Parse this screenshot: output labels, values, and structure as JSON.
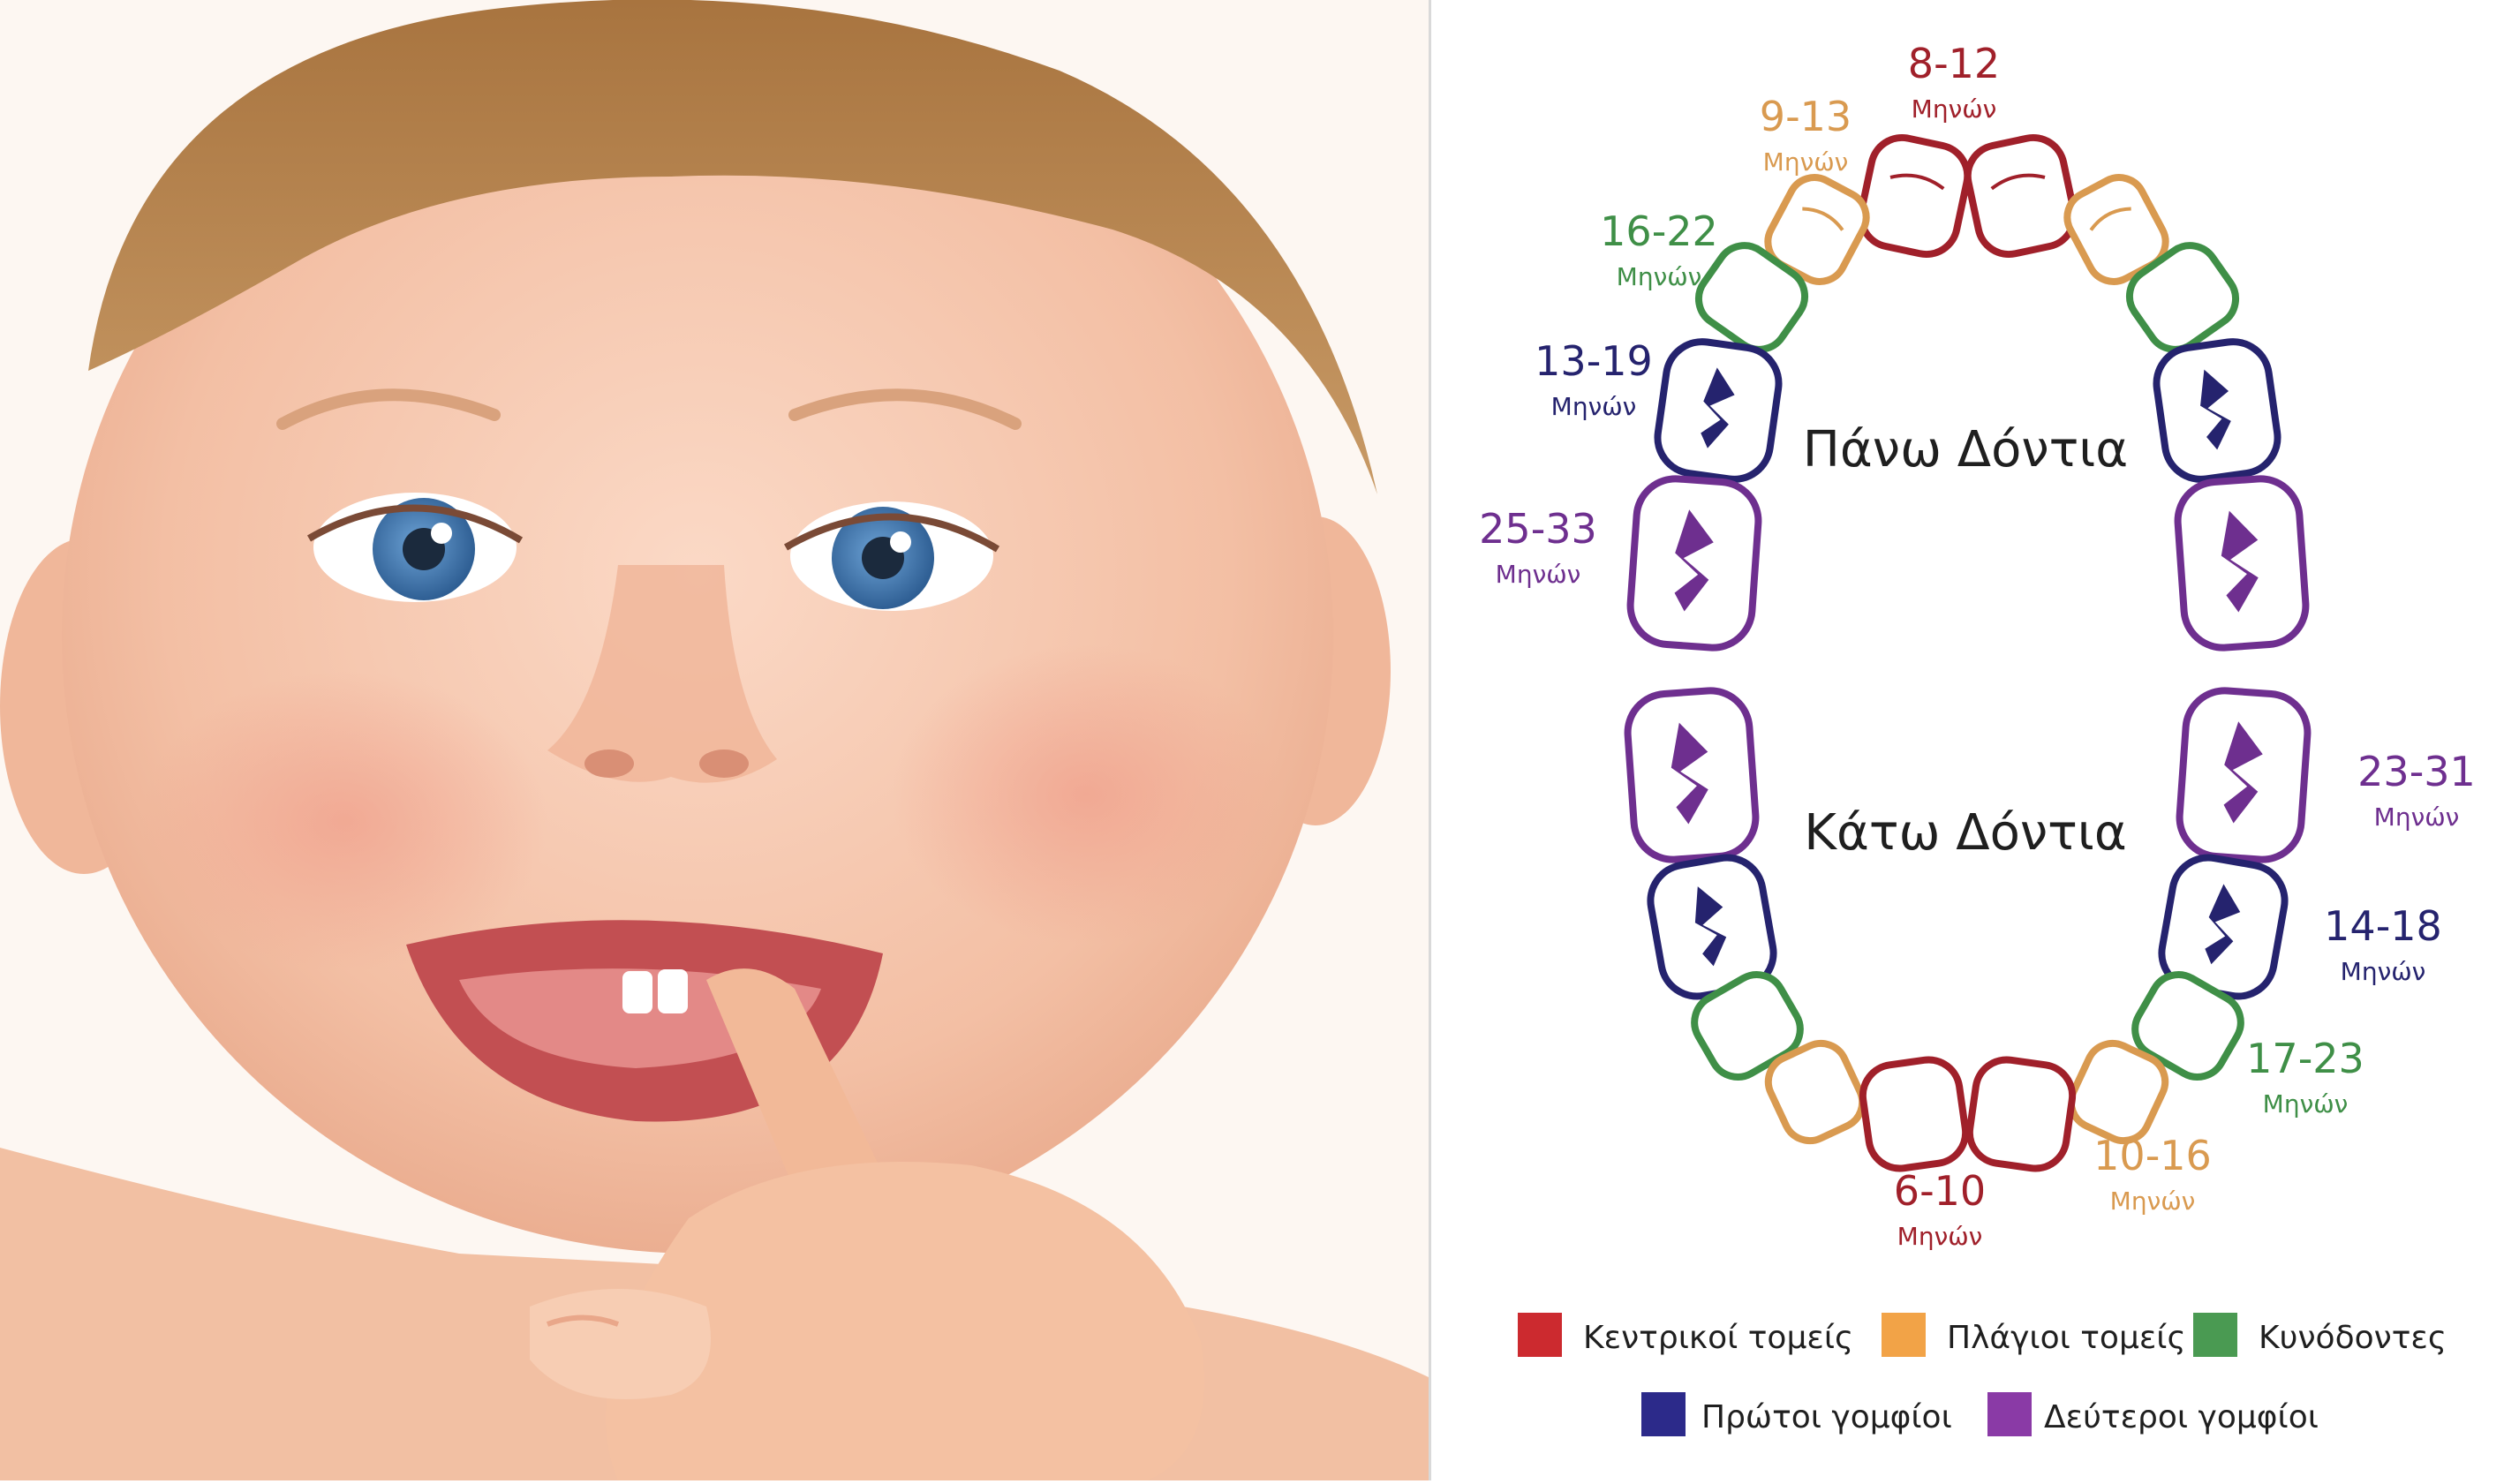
{
  "diagram": {
    "upper_title": "Πάνω Δόντια",
    "lower_title": "Κάτω Δόντια",
    "unit_label": "Μηνών",
    "labels": [
      {
        "id": "upper-central",
        "range": "8-12",
        "category": "central"
      },
      {
        "id": "upper-lateral",
        "range": "9-13",
        "category": "lateral"
      },
      {
        "id": "upper-canine",
        "range": "16-22",
        "category": "canine"
      },
      {
        "id": "upper-first-molar",
        "range": "13-19",
        "category": "first_molar"
      },
      {
        "id": "upper-second-molar",
        "range": "25-33",
        "category": "second_molar"
      },
      {
        "id": "lower-second-molar",
        "range": "23-31",
        "category": "second_molar"
      },
      {
        "id": "lower-first-molar",
        "range": "14-18",
        "category": "first_molar"
      },
      {
        "id": "lower-canine",
        "range": "17-23",
        "category": "canine"
      },
      {
        "id": "lower-lateral",
        "range": "10-16",
        "category": "lateral"
      },
      {
        "id": "lower-central",
        "range": "6-10",
        "category": "central"
      }
    ]
  },
  "legend": [
    {
      "key": "central",
      "label": "Κεντρικοί τομείς"
    },
    {
      "key": "lateral",
      "label": "Πλάγιοι τομείς"
    },
    {
      "key": "canine",
      "label": "Κυνόδοντες"
    },
    {
      "key": "first_molar",
      "label": "Πρώτοι γομφίοι"
    },
    {
      "key": "second_molar",
      "label": "Δεύτεροι γομφίοι"
    }
  ],
  "colors": {
    "central": "#a0202a",
    "central_legend": "#cc2a2f",
    "lateral": "#d99a50",
    "lateral_legend": "#f2a347",
    "canine": "#3f8f47",
    "canine_legend": "#4a9a52",
    "first_molar": "#25236e",
    "first_molar_legend": "#2c2a8a",
    "second_molar": "#6e2f8f",
    "second_molar_legend": "#8a3aa6"
  }
}
